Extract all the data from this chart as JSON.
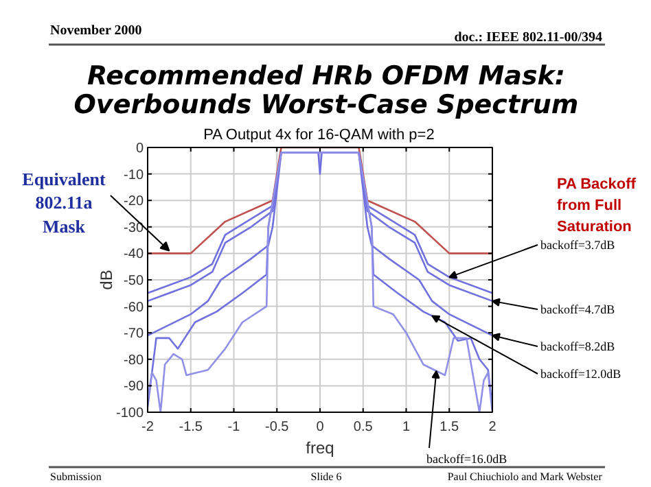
{
  "chart_data": {
    "type": "line",
    "title": "Recommended HRb OFDM Mask: Overbounds Worst-Case Spectrum",
    "subtitle": "PA Output 4x for 16-QAM with p=2",
    "xlabel": "freq",
    "ylabel": "dB",
    "xlim": [
      -2,
      2
    ],
    "ylim": [
      -100,
      0
    ],
    "xticks": [
      -2,
      -1.5,
      -1,
      -0.5,
      0,
      0.5,
      1,
      1.5,
      2
    ],
    "yticks": [
      -100,
      -90,
      -80,
      -70,
      -60,
      -50,
      -40,
      -30,
      -20,
      -10,
      0
    ],
    "grid": true,
    "marker": "none",
    "line_style": "solid",
    "annotations": [
      "November 2000",
      "doc.: IEEE 802.11-00/394",
      {
        "text": "Equivalent 802.11a Mask",
        "x": -1.75,
        "y": -40
      },
      "PA Backoff from Full Saturation",
      "Submission",
      "Slide 6",
      "Paul Chiuchiolo and Mark Webster"
    ],
    "series": [
      {
        "color": "#c0504d",
        "x": [
          -2,
          -1.5,
          -1.1,
          -0.55,
          -0.45,
          0.45,
          0.55,
          1.1,
          1.5,
          2
        ],
        "values": [
          -40,
          -40,
          -28,
          -20,
          0,
          0,
          -20,
          -28,
          -40,
          -40
        ]
      },
      {
        "name": "backoff=3.7dB",
        "color": "#7070e0",
        "x": [
          -2,
          -1.5,
          -1.25,
          -1.1,
          -0.8,
          -0.55,
          -0.45,
          -0.4,
          -0.02,
          0,
          0.02,
          0.4,
          0.45,
          0.55,
          0.8,
          1.1,
          1.25,
          1.5,
          2
        ],
        "values": [
          -55,
          -49,
          -44,
          -33,
          -27,
          -22,
          -2,
          -2,
          -2,
          -10,
          -2,
          -2,
          -2,
          -22,
          -27,
          -33,
          -44,
          -49,
          -55
        ]
      },
      {
        "name": "backoff=4.7dB",
        "color": "#7070e0",
        "x": [
          -2,
          -1.5,
          -1.25,
          -1.1,
          -0.8,
          -0.55,
          -0.45,
          0.45,
          0.55,
          0.8,
          1.1,
          1.25,
          1.5,
          2
        ],
        "values": [
          -58,
          -52,
          -47,
          -36,
          -30,
          -24,
          -2,
          -2,
          -24,
          -30,
          -36,
          -47,
          -52,
          -58
        ]
      },
      {
        "name": "backoff=8.2dB",
        "color": "#7070e0",
        "x": [
          -2,
          -1.5,
          -1.3,
          -1.15,
          -0.8,
          -0.6,
          -0.55,
          -0.45,
          0.45,
          0.55,
          0.6,
          0.8,
          1.15,
          1.3,
          1.5,
          2
        ],
        "values": [
          -71,
          -63,
          -58,
          -50,
          -42,
          -37,
          -30,
          -2,
          -2,
          -30,
          -37,
          -42,
          -50,
          -58,
          -63,
          -71
        ]
      },
      {
        "name": "backoff=12.0dB",
        "color": "#7070e0",
        "x": [
          -2,
          -1.9,
          -1.75,
          -1.65,
          -1.45,
          -1.2,
          -0.9,
          -0.62,
          -0.6,
          -0.45,
          0.45,
          0.6,
          0.62,
          0.9,
          1.2,
          1.45,
          1.6,
          1.75,
          1.85,
          1.95,
          2
        ],
        "values": [
          -98,
          -72,
          -72,
          -76,
          -66,
          -62,
          -55,
          -48,
          -30,
          -2,
          -2,
          -30,
          -48,
          -55,
          -62,
          -66,
          -73,
          -72,
          -80,
          -84,
          -98
        ]
      },
      {
        "name": "backoff=16.0dB",
        "color": "#9090e8",
        "x": [
          -2,
          -1.95,
          -1.9,
          -1.85,
          -1.8,
          -1.7,
          -1.6,
          -1.55,
          -1.3,
          -1.1,
          -0.9,
          -0.62,
          -0.6,
          -0.45,
          0.45,
          0.6,
          0.62,
          0.85,
          1.0,
          1.2,
          1.45,
          1.55,
          1.7,
          1.85,
          1.9,
          1.95,
          2
        ],
        "values": [
          -95,
          -85,
          -88,
          -100,
          -82,
          -78,
          -80,
          -86,
          -84,
          -76,
          -66,
          -60,
          -30,
          -2,
          -2,
          -30,
          -60,
          -63,
          -70,
          -82,
          -86,
          -72,
          -72,
          -100,
          -88,
          -85,
          -100
        ]
      }
    ]
  }
}
